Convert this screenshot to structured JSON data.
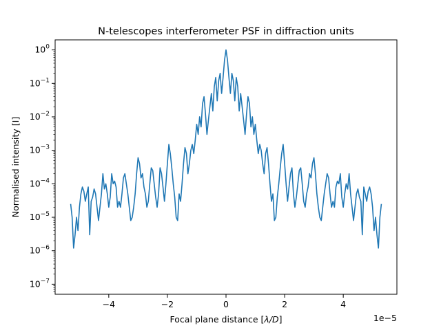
{
  "chart_data": {
    "type": "line",
    "title": "N-telescopes interferometer PSF in diffraction units",
    "xlabel_prefix": "Focal plane distance [",
    "xlabel_symbol": "λ/D",
    "xlabel_suffix": "]",
    "ylabel": "Normalised intensity [I]",
    "x_offset_text": "1e−5",
    "xlim": [
      -5.83,
      5.83
    ],
    "ylim_log10": [
      -7.3,
      0.3
    ],
    "yscale": "log",
    "grid": false,
    "x_ticks": [
      {
        "value": -4,
        "label": "−4"
      },
      {
        "value": -2,
        "label": "−2"
      },
      {
        "value": 0,
        "label": "0"
      },
      {
        "value": 2,
        "label": "2"
      },
      {
        "value": 4,
        "label": "4"
      }
    ],
    "y_ticks": [
      {
        "exp": 0,
        "label_base": "10",
        "label_exp": "0"
      },
      {
        "exp": -1,
        "label_base": "10",
        "label_exp": "−1"
      },
      {
        "exp": -2,
        "label_base": "10",
        "label_exp": "−2"
      },
      {
        "exp": -3,
        "label_base": "10",
        "label_exp": "−3"
      },
      {
        "exp": -4,
        "label_base": "10",
        "label_exp": "−4"
      },
      {
        "exp": -5,
        "label_base": "10",
        "label_exp": "−5"
      },
      {
        "exp": -6,
        "label_base": "10",
        "label_exp": "−6"
      },
      {
        "exp": -7,
        "label_base": "10",
        "label_exp": "−7"
      }
    ],
    "series": [
      {
        "color": "#1f77b4",
        "x": [
          0,
          0.05,
          0.1,
          0.15,
          0.2,
          0.25,
          0.3,
          0.35,
          0.4,
          0.45,
          0.5,
          0.55,
          0.6,
          0.65,
          0.7,
          0.75,
          0.8,
          0.85,
          0.9,
          0.95,
          1.0,
          1.05,
          1.1,
          1.15,
          1.2,
          1.25,
          1.3,
          1.35,
          1.4,
          1.45,
          1.5,
          1.55,
          1.6,
          1.65,
          1.7,
          1.75,
          1.8,
          1.85,
          1.9,
          1.95,
          2.0,
          2.05,
          2.1,
          2.15,
          2.2,
          2.25,
          2.3,
          2.35,
          2.4,
          2.45,
          2.5,
          2.55,
          2.6,
          2.65,
          2.7,
          2.75,
          2.8,
          2.85,
          2.9,
          2.95,
          3.0,
          3.05,
          3.1,
          3.15,
          3.2,
          3.25,
          3.3,
          3.35,
          3.4,
          3.45,
          3.5,
          3.55,
          3.6,
          3.65,
          3.7,
          3.75,
          3.8,
          3.85,
          3.9,
          3.95,
          4.0,
          4.05,
          4.1,
          4.15,
          4.2,
          4.25,
          4.3,
          4.35,
          4.4,
          4.45,
          4.5,
          4.55,
          4.6,
          4.65,
          4.7,
          4.75,
          4.8,
          4.85,
          4.9,
          4.95,
          5.0,
          5.05,
          5.1,
          5.15,
          5.2,
          5.25,
          5.3
        ],
        "y": [
          1,
          0.5,
          0.15,
          0.05,
          0.2,
          0.12,
          0.03,
          0.15,
          0.08,
          0.015,
          0.05,
          0.02,
          0.008,
          0.003,
          0.012,
          0.04,
          0.025,
          0.005,
          0.01,
          0.003,
          0.006,
          0.002,
          0.0008,
          0.0015,
          0.001,
          0.0004,
          0.0002,
          0.0008,
          0.0012,
          0.0004,
          0.0001,
          3e-05,
          5e-05,
          8e-06,
          1e-05,
          4e-05,
          0.0001,
          0.0003,
          0.0008,
          0.0015,
          0.0004,
          0.0001,
          3e-05,
          8e-05,
          0.0002,
          0.0003,
          5e-05,
          2e-05,
          4e-05,
          0.0001,
          0.00025,
          0.0003,
          0.0001,
          3e-05,
          2e-05,
          5e-05,
          8e-05,
          0.0002,
          0.00015,
          0.0004,
          0.0006,
          0.0002,
          5e-05,
          2e-05,
          1e-05,
          8e-06,
          2e-05,
          5e-05,
          0.0001,
          0.0002,
          0.00015,
          5e-05,
          2e-05,
          3e-05,
          2e-05,
          8e-05,
          0.00012,
          0.0001,
          0.0002,
          4e-05,
          2e-05,
          5e-05,
          0.0001,
          7e-05,
          0.0002,
          5e-05,
          2e-05,
          8e-06,
          2e-05,
          5e-05,
          7e-05,
          4e-05,
          3e-05,
          3e-06,
          8e-05,
          5e-05,
          3e-05,
          6e-05,
          8e-05,
          5e-05,
          2e-05,
          4e-06,
          1e-05,
          3e-06,
          1.2e-06,
          1e-05,
          2.5e-05
        ]
      }
    ]
  }
}
